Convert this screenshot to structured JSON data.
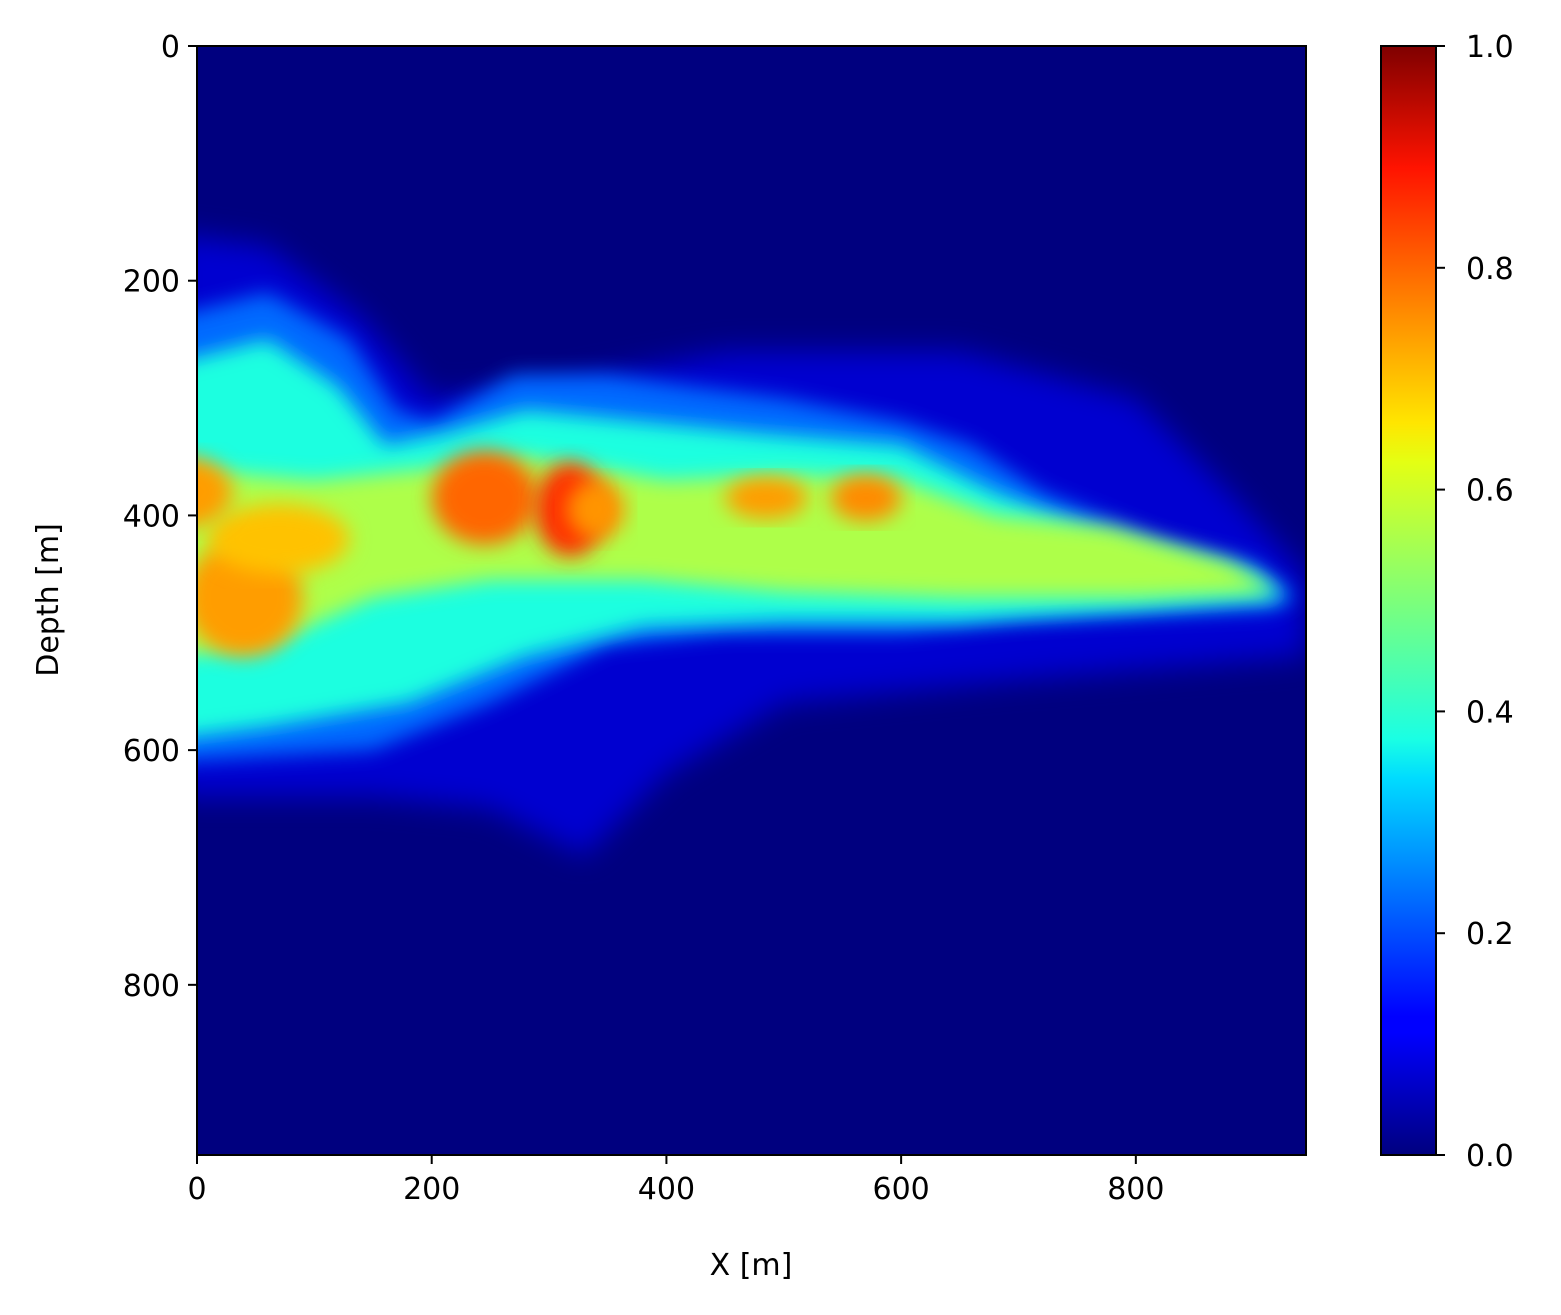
{
  "chart_data": {
    "type": "heatmap",
    "title": "",
    "xlabel": "X [m]",
    "ylabel": "Depth [m]",
    "xlim": [
      0,
      945
    ],
    "ylim": [
      945,
      0
    ],
    "y_inverted": true,
    "x_ticks": [
      0,
      200,
      400,
      600,
      800
    ],
    "x_tick_labels": [
      "0",
      "200",
      "400",
      "600",
      "800"
    ],
    "y_ticks": [
      0,
      200,
      400,
      600,
      800
    ],
    "y_tick_labels": [
      "0",
      "200",
      "400",
      "600",
      "800"
    ],
    "colormap": "jet",
    "colorbar": {
      "vmin": 0.0,
      "vmax": 1.0,
      "ticks": [
        0.0,
        0.2,
        0.4,
        0.6,
        0.8,
        1.0
      ],
      "tick_labels": [
        "0.0",
        "0.2",
        "0.4",
        "0.6",
        "0.8",
        "1.0"
      ]
    },
    "grid": false,
    "plume": {
      "description_values": "approximate value field: background 0.0; plume centred near depth 430 m",
      "regions": [
        {
          "x_range": [
            0,
            940
          ],
          "depth_top": [
            230,
            300,
            320,
            340,
            380,
            430
          ],
          "depth_bottom": [
            600,
            560,
            520,
            500,
            490,
            480
          ],
          "value": 0.3
        },
        {
          "x_range": [
            0,
            930
          ],
          "depth_core": 430,
          "value": 0.55
        },
        {
          "center": [
            40,
            470
          ],
          "value": 0.75
        },
        {
          "center": [
            80,
            420
          ],
          "value": 0.72
        },
        {
          "center": [
            245,
            380
          ],
          "value": 0.8
        },
        {
          "center": [
            318,
            400
          ],
          "value": 0.88
        },
        {
          "center": [
            480,
            385
          ],
          "value": 0.75
        },
        {
          "center": [
            570,
            385
          ],
          "value": 0.77
        }
      ]
    }
  }
}
